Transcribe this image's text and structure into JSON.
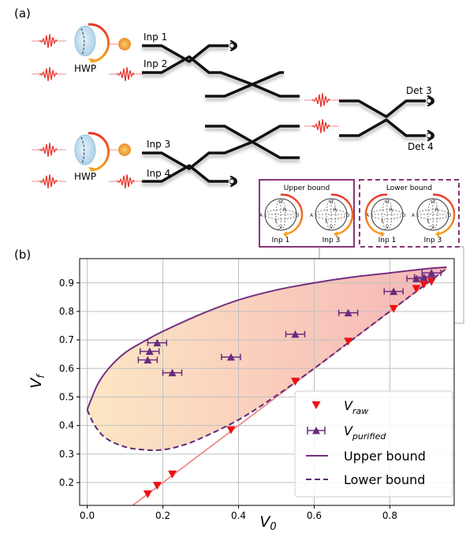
{
  "panel_a": {
    "label": "(a)",
    "hwp_label": "HWP",
    "inputs": [
      "Inp 1",
      "Inp 2",
      "Inp 3",
      "Inp 4"
    ],
    "detectors": [
      "Det 3",
      "Det 4"
    ],
    "inset": {
      "upper_title": "Upper bound",
      "lower_title": "Lower bound",
      "sphere_labels": [
        "Inp 1",
        "Inp 3"
      ],
      "axis_letters": [
        "H",
        "V",
        "A",
        "D",
        "R",
        "L"
      ],
      "colors": {
        "upper_frame": "#8a3478",
        "lower_frame": "#8a3478",
        "arc_start": "#e8342a",
        "arc_end": "#f6a21c"
      }
    }
  },
  "panel_b": {
    "label": "(b)"
  },
  "chart_data": {
    "type": "scatter",
    "xlabel": "V_0",
    "ylabel": "V_f",
    "xlim": [
      -0.02,
      0.97
    ],
    "ylim": [
      0.12,
      0.985
    ],
    "xticks": [
      "0.0",
      "0.2",
      "0.4",
      "0.6",
      "0.8"
    ],
    "xtick_values": [
      0.0,
      0.2,
      0.4,
      0.6,
      0.8
    ],
    "yticks": [
      "0.2",
      "0.3",
      "0.4",
      "0.5",
      "0.6",
      "0.7",
      "0.8",
      "0.9"
    ],
    "ytick_values": [
      0.2,
      0.3,
      0.4,
      0.5,
      0.6,
      0.7,
      0.8,
      0.9
    ],
    "grid": true,
    "legend_position": "lower-right",
    "colors": {
      "raw": "#ee1111",
      "purified": "#6a2c7e",
      "upper": "#74307f",
      "lower": "#5b2a7a",
      "diagonal": "#f08a8a",
      "fill_left": "#fce7c4",
      "fill_right": "#f6b5b5"
    },
    "series": [
      {
        "name": "V_raw",
        "marker": "triangle-down",
        "x": [
          0.16,
          0.185,
          0.225,
          0.38,
          0.55,
          0.69,
          0.81,
          0.87,
          0.89,
          0.91
        ],
        "y": [
          0.16,
          0.19,
          0.23,
          0.385,
          0.555,
          0.695,
          0.81,
          0.88,
          0.895,
          0.905
        ]
      },
      {
        "name": "V_purified",
        "marker": "triangle-up-errorbar",
        "x": [
          0.16,
          0.165,
          0.185,
          0.225,
          0.38,
          0.55,
          0.69,
          0.81,
          0.87,
          0.89,
          0.91
        ],
        "y": [
          0.63,
          0.66,
          0.69,
          0.585,
          0.64,
          0.72,
          0.795,
          0.87,
          0.915,
          0.92,
          0.935
        ],
        "xerr": [
          0.025,
          0.025,
          0.025,
          0.025,
          0.025,
          0.025,
          0.025,
          0.025,
          0.025,
          0.025,
          0.025
        ]
      },
      {
        "name": "Upper bound",
        "style": "solid",
        "x": [
          0.0,
          0.01,
          0.03,
          0.06,
          0.1,
          0.15,
          0.2,
          0.3,
          0.4,
          0.5,
          0.6,
          0.7,
          0.8,
          0.9,
          0.95
        ],
        "y": [
          0.455,
          0.49,
          0.55,
          0.605,
          0.655,
          0.695,
          0.73,
          0.79,
          0.84,
          0.875,
          0.9,
          0.92,
          0.935,
          0.95,
          0.955
        ]
      },
      {
        "name": "Lower bound",
        "style": "dashed",
        "x": [
          0.0,
          0.02,
          0.05,
          0.1,
          0.15,
          0.2,
          0.25,
          0.3,
          0.4,
          0.5,
          0.6,
          0.7,
          0.8,
          0.9,
          0.95
        ],
        "y": [
          0.455,
          0.4,
          0.355,
          0.325,
          0.315,
          0.315,
          0.33,
          0.355,
          0.42,
          0.505,
          0.6,
          0.7,
          0.8,
          0.9,
          0.95
        ]
      },
      {
        "name": "",
        "style": "diagonal",
        "x": [
          0.12,
          0.95
        ],
        "y": [
          0.12,
          0.95
        ]
      }
    ],
    "legend": [
      "V_raw",
      "V_purified",
      "Upper bound",
      "Lower bound"
    ]
  }
}
